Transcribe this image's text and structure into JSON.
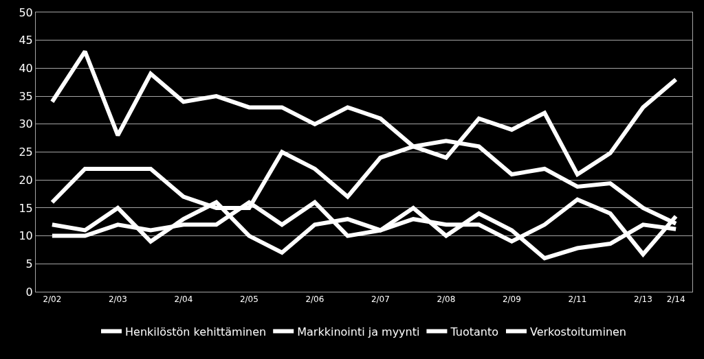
{
  "chart_data": {
    "type": "line",
    "categories": [
      "2/02",
      null,
      "2/03",
      null,
      "2/04",
      null,
      "2/05",
      null,
      "2/06",
      null,
      "2/07",
      null,
      "2/08",
      null,
      "2/09",
      null,
      "2/11",
      null,
      "2/13",
      "2/14"
    ],
    "series": [
      {
        "name": "Henkilöstön kehittäminen",
        "color": "#ffffff",
        "values": [
          34,
          43,
          28,
          39,
          34,
          35,
          33,
          33,
          30,
          33,
          31,
          26,
          24,
          31,
          29,
          32,
          21,
          24.8,
          33,
          38
        ]
      },
      {
        "name": "Markkinointi ja myynti",
        "color": "#ffffff",
        "values": [
          16,
          22,
          22,
          22,
          17,
          15,
          15,
          25,
          22,
          17,
          24,
          26,
          27,
          26,
          21,
          22,
          18.8,
          19.4,
          15,
          12.2
        ]
      },
      {
        "name": "Tuotanto",
        "color": "#ffffff",
        "values": [
          12,
          11,
          15,
          9,
          13,
          16,
          10,
          7,
          12,
          13,
          11,
          15,
          10,
          14,
          11,
          6,
          7.8,
          8.6,
          12,
          11.2
        ]
      },
      {
        "name": "Verkostoituminen",
        "color": "#ffffff",
        "values": [
          10,
          10,
          12,
          11,
          12,
          12,
          16,
          12,
          16,
          10,
          11,
          13,
          12,
          12,
          9,
          12,
          16.5,
          14,
          6.7,
          13.5
        ]
      }
    ],
    "ylim": [
      0,
      50
    ],
    "yticks": [
      0,
      5,
      10,
      15,
      20,
      25,
      30,
      35,
      40,
      45,
      50
    ],
    "grid": "y",
    "legend": "bottom",
    "marker": "none",
    "line_style": "solid"
  }
}
